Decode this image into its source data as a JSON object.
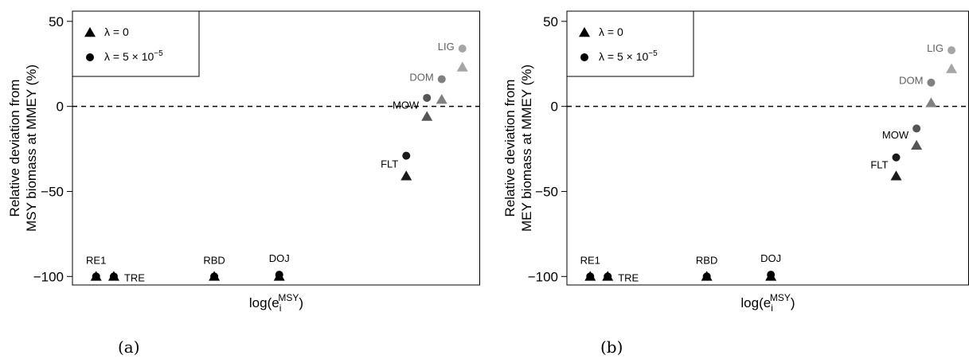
{
  "figure": {
    "captions": [
      "(a)",
      "(b)"
    ]
  },
  "colors": {
    "dark": "#1a1a1a",
    "mid": "#555555",
    "gray": "#808080",
    "light": "#a6a6a6",
    "black": "#000000"
  },
  "chart_data": [
    {
      "type": "scatter",
      "panel": "(a)",
      "ylabel_lines": [
        "Relative deviation from",
        "MSY biomass at MMEY (%)"
      ],
      "xlabel": "log(e_i^MSY)",
      "ylim": [
        -105,
        56
      ],
      "yticks": [
        "50",
        "0",
        "−50",
        "−100"
      ],
      "reference_line_y": 0,
      "legend": {
        "position": "top-left",
        "entries": [
          "λ = 0",
          "λ = 5 × 10^−5"
        ]
      },
      "points": [
        {
          "label": "RE1",
          "x": 1.0,
          "tri": -100,
          "circ": -100,
          "color": "black"
        },
        {
          "label": "TRE",
          "x": 1.6,
          "tri": -100,
          "circ": -100,
          "color": "black"
        },
        {
          "label": "RBD",
          "x": 5.0,
          "tri": -100,
          "circ": -100,
          "color": "black"
        },
        {
          "label": "DOJ",
          "x": 7.2,
          "tri": -100,
          "circ": -99,
          "color": "black"
        },
        {
          "label": "FLT",
          "x": 11.5,
          "tri": -41,
          "circ": -29,
          "color": "dark"
        },
        {
          "label": "MOW",
          "x": 12.2,
          "tri": -6,
          "circ": 5,
          "color": "mid"
        },
        {
          "label": "DOM",
          "x": 12.7,
          "tri": 4,
          "circ": 16,
          "color": "gray"
        },
        {
          "label": "LIG",
          "x": 13.4,
          "tri": 23,
          "circ": 34,
          "color": "light"
        }
      ]
    },
    {
      "type": "scatter",
      "panel": "(b)",
      "ylabel_lines": [
        "Relative deviation from",
        "MEY biomass at MMEY (%)"
      ],
      "xlabel": "log(e_i^MSY)",
      "ylim": [
        -105,
        56
      ],
      "yticks": [
        "50",
        "0",
        "−50",
        "−100"
      ],
      "reference_line_y": 0,
      "legend": {
        "position": "top-left",
        "entries": [
          "λ = 0",
          "λ = 5 × 10^−5"
        ]
      },
      "points": [
        {
          "label": "RE1",
          "x": 1.0,
          "tri": -100,
          "circ": -100,
          "color": "black"
        },
        {
          "label": "TRE",
          "x": 1.6,
          "tri": -100,
          "circ": -100,
          "color": "black"
        },
        {
          "label": "RBD",
          "x": 5.0,
          "tri": -100,
          "circ": -100,
          "color": "black"
        },
        {
          "label": "DOJ",
          "x": 7.2,
          "tri": -100,
          "circ": -99,
          "color": "black"
        },
        {
          "label": "FLT",
          "x": 11.5,
          "tri": -41,
          "circ": -30,
          "color": "dark"
        },
        {
          "label": "MOW",
          "x": 12.2,
          "tri": -23,
          "circ": -13,
          "color": "mid"
        },
        {
          "label": "DOM",
          "x": 12.7,
          "tri": 2,
          "circ": 14,
          "color": "gray"
        },
        {
          "label": "LIG",
          "x": 13.4,
          "tri": 22,
          "circ": 33,
          "color": "light"
        }
      ]
    }
  ]
}
